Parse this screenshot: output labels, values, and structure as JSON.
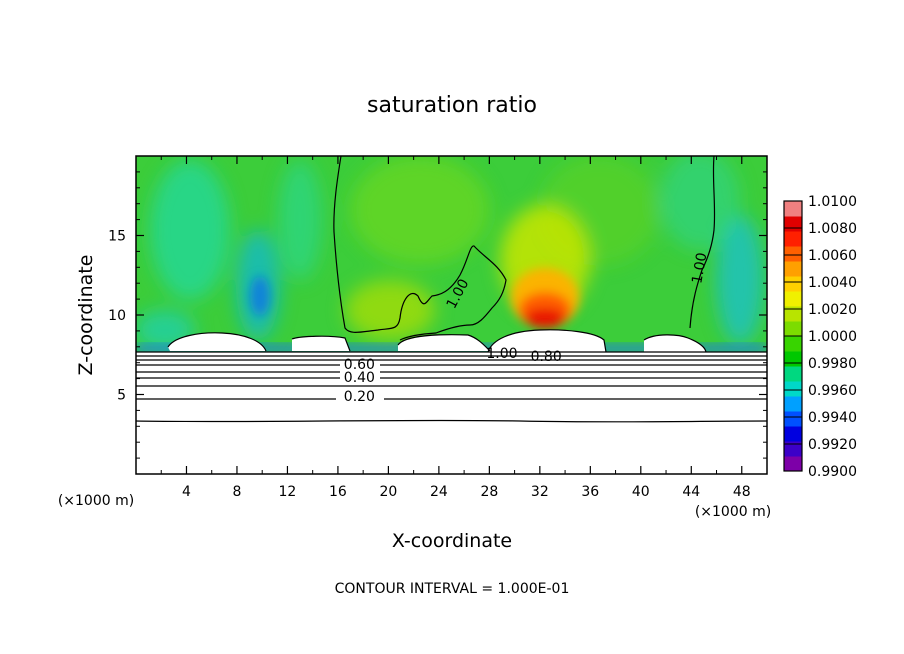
{
  "chart_data": {
    "type": "heatmap",
    "title": "saturation ratio",
    "xlabel": "X-coordinate",
    "ylabel": "Z-coordinate",
    "x_unit": "(×1000 m)",
    "y_unit": "(×1000 m)",
    "x_ticks": [
      4,
      8,
      12,
      16,
      20,
      24,
      28,
      32,
      36,
      40,
      44,
      48
    ],
    "y_ticks": [
      5,
      10,
      15
    ],
    "xlim": [
      0,
      50
    ],
    "ylim": [
      0,
      20
    ],
    "footer": "CONTOUR INTERVAL = 1.000E-01",
    "colorbar": {
      "labels": [
        "1.0100",
        "1.0080",
        "1.0060",
        "1.0040",
        "1.0020",
        "1.0000",
        "0.9980",
        "0.9960",
        "0.9940",
        "0.9920",
        "0.9900"
      ],
      "min": 0.99,
      "max": 1.01,
      "colors": [
        "#7d00a8",
        "#3c00c8",
        "#0000e0",
        "#0050ff",
        "#00a0ff",
        "#00d8c8",
        "#00d880",
        "#00c800",
        "#38d400",
        "#7cdc00",
        "#b8e400",
        "#f0f000",
        "#ffd000",
        "#ffa000",
        "#ff6000",
        "#ff2000",
        "#e00000",
        "#f08080"
      ]
    },
    "contour_labels": [
      {
        "text": "1.00",
        "x": 25.8,
        "y": 11.2,
        "angle": -62
      },
      {
        "text": "1.00",
        "x": 45.0,
        "y": 12.9,
        "angle": -80
      },
      {
        "text": "1.00",
        "x": 29.0,
        "y": 7.3,
        "angle": 0
      },
      {
        "text": "0.80",
        "x": 32.5,
        "y": 7.1,
        "angle": 0
      },
      {
        "text": "0.60",
        "x": 17.7,
        "y": 6.6,
        "angle": 0
      },
      {
        "text": "0.40",
        "x": 17.7,
        "y": 5.8,
        "angle": 0
      },
      {
        "text": "0.20",
        "x": 17.7,
        "y": 4.6,
        "angle": 0
      }
    ],
    "low_level_contours_z": [
      3.3,
      4.6,
      5.25,
      5.8,
      6.2,
      6.6,
      7.0,
      7.3,
      7.6
    ],
    "field_regions": [
      {
        "name": "upper-ascent",
        "x_center": 32,
        "z_center": 9.9,
        "peak": 1.0068
      },
      {
        "name": "dry-streak-left",
        "x_center": 9.5,
        "z_center": 11.5,
        "value": 0.9955
      },
      {
        "name": "dry-streak-right",
        "x_center": 47.5,
        "z_center": 11,
        "value": 0.9958
      }
    ]
  }
}
